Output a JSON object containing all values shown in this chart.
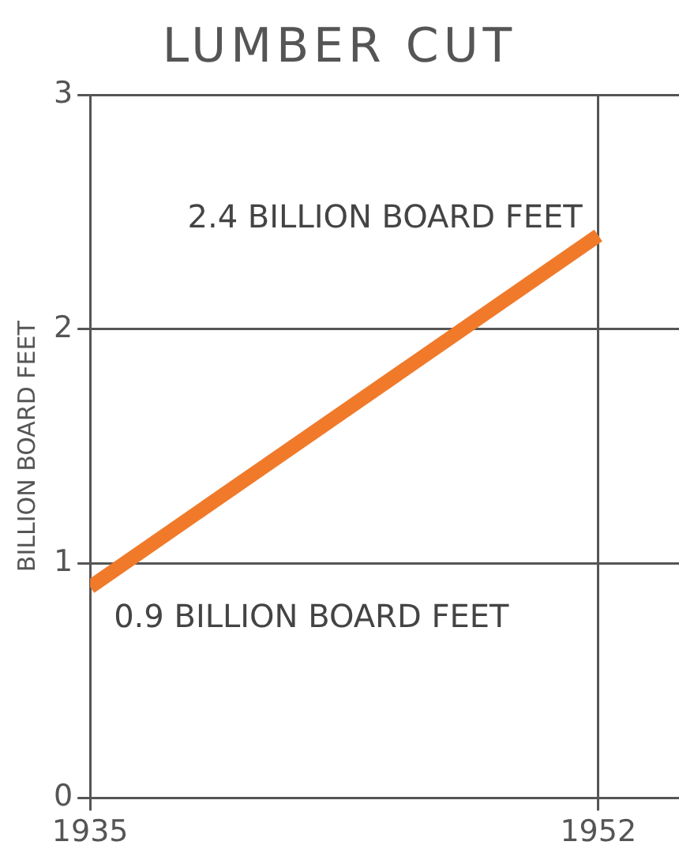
{
  "chart_data": {
    "type": "line",
    "title": "LUMBER CUT",
    "ylabel": "BILLION BOARD FEET",
    "x": [
      1935,
      1952
    ],
    "series": [
      {
        "color": "#f07a2a",
        "values": [
          0.9,
          2.4
        ]
      }
    ],
    "xlim": [
      1935,
      1954.7
    ],
    "xticks": [
      1935,
      1952
    ],
    "ylim": [
      0,
      3
    ],
    "yticks": [
      0,
      1,
      2,
      3
    ],
    "grid": true,
    "legend": false,
    "marker": "none",
    "line_style": "solid",
    "annotations": [
      {
        "text": "2.4 BILLION BOARD FEET",
        "x": 1952,
        "y": 2.4
      },
      {
        "text": "0.9 BILLION BOARD FEET",
        "x": 1935,
        "y": 0.9
      }
    ]
  }
}
